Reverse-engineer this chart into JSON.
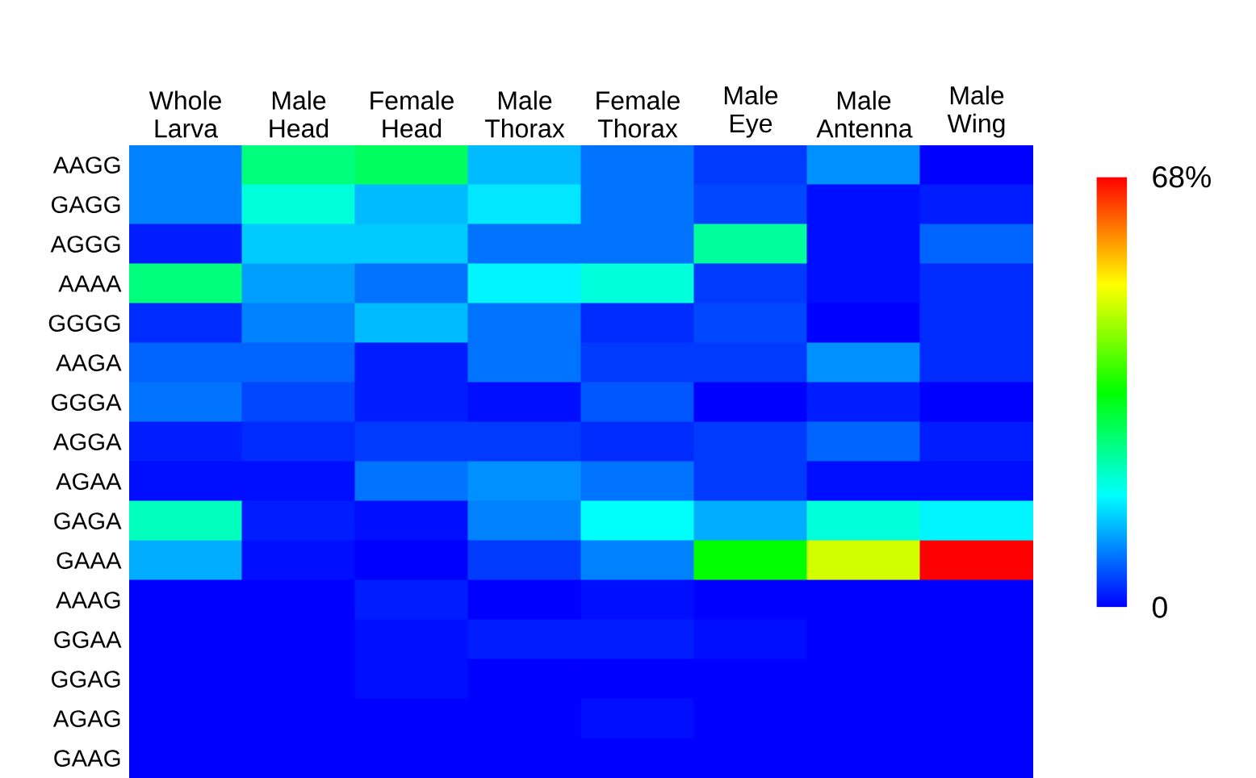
{
  "chart_data": {
    "type": "heatmap",
    "categories": [
      "Whole Larva",
      "Male Head",
      "Female Head",
      "Male Thorax",
      "Female Thorax",
      "Male Eye",
      "Male Antenna",
      "Male Wing"
    ],
    "y_categories": [
      "AAGG",
      "GAGG",
      "AGGG",
      "AAAA",
      "GGGG",
      "AAGA",
      "GGGA",
      "AGGA",
      "AGAA",
      "GAGA",
      "GAAA",
      "AAAG",
      "GGAA",
      "GGAG",
      "AGAG",
      "GAAG"
    ],
    "cells": [
      [
        9,
        26,
        28,
        13,
        8,
        4,
        10,
        0
      ],
      [
        9,
        20,
        13,
        16,
        8,
        5,
        1,
        2
      ],
      [
        2,
        14,
        14,
        8,
        8,
        24,
        1,
        7
      ],
      [
        26,
        11,
        8,
        17,
        20,
        4,
        1,
        3
      ],
      [
        3,
        9,
        13,
        8,
        3,
        5,
        0,
        3
      ],
      [
        7,
        7,
        2,
        8,
        4,
        4,
        10,
        3
      ],
      [
        8,
        5,
        2,
        1,
        6,
        0,
        2,
        0
      ],
      [
        2,
        3,
        4,
        4,
        3,
        4,
        7,
        2
      ],
      [
        1,
        1,
        8,
        10,
        8,
        4,
        1,
        1
      ],
      [
        22,
        2,
        1,
        9,
        18,
        12,
        20,
        17
      ],
      [
        12,
        1,
        0,
        4,
        9,
        34,
        48,
        68
      ],
      [
        0,
        0,
        2,
        0,
        1,
        0,
        0,
        0
      ],
      [
        0,
        0,
        1,
        2,
        2,
        1,
        0,
        0
      ],
      [
        0,
        0,
        1,
        0,
        0,
        0,
        0,
        0
      ],
      [
        0,
        0,
        0,
        0,
        1,
        0,
        0,
        0
      ],
      [
        0,
        0,
        0,
        0,
        0,
        0,
        0,
        0
      ]
    ],
    "clim": [
      0,
      68
    ],
    "cticks": [
      0,
      {
        "value": 68,
        "label": "68%"
      }
    ]
  }
}
